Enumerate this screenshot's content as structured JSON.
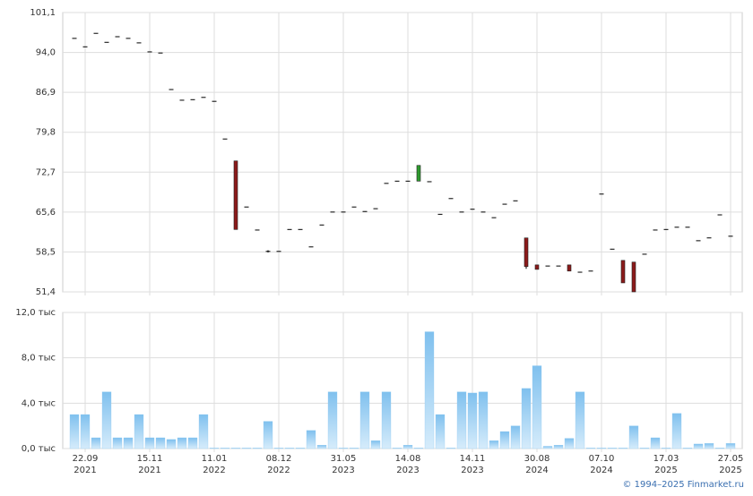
{
  "chart_data": [
    {
      "type": "candlestick",
      "open": [
        96.5,
        95.0,
        97.4,
        95.8,
        96.8,
        96.5,
        95.7,
        94.1,
        93.9,
        87.4,
        85.5,
        85.6,
        86.0,
        85.3,
        78.6,
        74.7,
        66.5,
        62.4,
        58.6,
        58.6,
        62.5,
        62.5,
        59.4,
        63.3,
        65.6,
        65.6,
        66.5,
        65.7,
        66.2,
        70.7,
        71.1,
        71.1,
        71.1,
        71.0,
        65.2,
        68.0,
        65.6,
        66.1,
        65.6,
        64.6,
        67.0,
        67.6,
        61.0,
        56.2,
        56.0,
        56.0,
        56.2,
        54.9,
        55.1,
        68.8,
        59.0,
        57.0,
        56.7,
        58.1,
        62.4,
        62.5,
        62.9,
        62.9,
        60.5,
        61.0,
        65.1,
        61.3
      ],
      "high": [
        96.5,
        95.0,
        97.4,
        95.8,
        96.8,
        96.5,
        95.7,
        94.1,
        93.9,
        87.4,
        85.5,
        85.6,
        86.0,
        85.3,
        78.6,
        74.7,
        66.5,
        62.4,
        58.8,
        58.6,
        62.5,
        62.5,
        59.4,
        63.3,
        65.6,
        65.6,
        66.5,
        65.7,
        66.2,
        70.7,
        71.1,
        71.1,
        73.9,
        71.0,
        65.2,
        68.0,
        65.6,
        66.1,
        65.6,
        64.6,
        67.0,
        67.6,
        61.0,
        56.2,
        56.0,
        56.0,
        56.2,
        54.9,
        55.1,
        68.8,
        59.0,
        57.0,
        56.7,
        58.1,
        62.4,
        62.5,
        62.9,
        62.9,
        60.5,
        61.0,
        65.1,
        61.3
      ],
      "low": [
        96.5,
        95.0,
        97.4,
        95.8,
        96.8,
        96.5,
        95.7,
        94.1,
        93.9,
        87.4,
        85.5,
        85.6,
        86.0,
        85.3,
        78.6,
        62.5,
        66.5,
        62.4,
        58.4,
        58.6,
        62.5,
        62.5,
        59.4,
        63.3,
        65.6,
        65.6,
        66.5,
        65.7,
        66.2,
        70.7,
        71.1,
        71.1,
        71.1,
        71.0,
        65.2,
        68.0,
        65.6,
        66.1,
        65.6,
        64.6,
        67.0,
        67.6,
        55.5,
        55.4,
        56.0,
        56.0,
        55.1,
        54.9,
        55.1,
        68.8,
        59.0,
        53.0,
        51.4,
        58.1,
        62.4,
        62.5,
        62.9,
        62.9,
        60.5,
        61.0,
        65.1,
        61.3
      ],
      "close": [
        96.5,
        95.0,
        97.4,
        95.8,
        96.8,
        96.5,
        95.7,
        94.1,
        93.9,
        87.4,
        85.5,
        85.6,
        86.0,
        85.3,
        78.6,
        62.5,
        66.5,
        62.4,
        58.6,
        58.6,
        62.5,
        62.5,
        59.4,
        63.3,
        65.6,
        65.6,
        66.5,
        65.7,
        66.2,
        70.7,
        71.1,
        71.1,
        73.9,
        71.0,
        65.2,
        68.0,
        65.6,
        66.1,
        65.6,
        64.6,
        67.0,
        67.6,
        55.9,
        55.4,
        56.0,
        56.0,
        55.1,
        54.9,
        55.1,
        68.8,
        59.0,
        53.0,
        51.4,
        58.1,
        62.4,
        62.5,
        62.9,
        62.9,
        60.5,
        61.0,
        65.1,
        61.3
      ],
      "up_color": "#2e9a2e",
      "down_color": "#8b1a1a",
      "flat_color": "#000000",
      "ylim": [
        51.4,
        101.1
      ],
      "yticks": [
        {
          "value": 51.4,
          "label": "51,4"
        },
        {
          "value": 58.5,
          "label": "58,5"
        },
        {
          "value": 65.6,
          "label": "65,6"
        },
        {
          "value": 72.7,
          "label": "72,7"
        },
        {
          "value": 79.8,
          "label": "79,8"
        },
        {
          "value": 86.9,
          "label": "86,9"
        },
        {
          "value": 94.0,
          "label": "94,0"
        },
        {
          "value": 101.1,
          "label": "101,1"
        }
      ],
      "grid": true
    },
    {
      "type": "bar",
      "categories": [
        null,
        "22.09\n2021",
        null,
        null,
        null,
        null,
        null,
        "15.11\n2021",
        null,
        null,
        null,
        null,
        null,
        "11.01\n2022",
        null,
        null,
        null,
        null,
        null,
        "08.12\n2022",
        null,
        null,
        null,
        null,
        null,
        "31.05\n2023",
        null,
        null,
        null,
        null,
        null,
        "14.08\n2023",
        null,
        null,
        null,
        null,
        null,
        "14.11\n2023",
        null,
        null,
        null,
        null,
        null,
        "30.08\n2024",
        null,
        null,
        null,
        null,
        null,
        "07.10\n2024",
        null,
        null,
        null,
        null,
        null,
        "17.03\n2025",
        null,
        null,
        null,
        null,
        null,
        "27.05\n2025"
      ],
      "values": [
        3000,
        3000,
        950,
        5000,
        950,
        950,
        3000,
        950,
        950,
        800,
        950,
        950,
        3000,
        50,
        50,
        50,
        50,
        50,
        2400,
        50,
        50,
        50,
        1600,
        300,
        5000,
        50,
        50,
        5000,
        700,
        5000,
        50,
        300,
        50,
        10300,
        3000,
        50,
        5000,
        4900,
        5000,
        700,
        1500,
        2000,
        5300,
        7300,
        200,
        300,
        900,
        5000,
        50,
        50,
        50,
        50,
        2000,
        50,
        950,
        50,
        3100,
        50,
        400,
        450,
        50,
        450
      ],
      "color": "#8cc8f0",
      "ylim": [
        0,
        12000
      ],
      "yticks": [
        {
          "value": 0,
          "label": "0,0 тыс"
        },
        {
          "value": 4000,
          "label": "4,0 тыс"
        },
        {
          "value": 8000,
          "label": "8,0 тыс"
        },
        {
          "value": 12000,
          "label": "12,0 тыс"
        }
      ],
      "grid": true,
      "source": "© 1994–2025 Finmarket.ru"
    }
  ]
}
